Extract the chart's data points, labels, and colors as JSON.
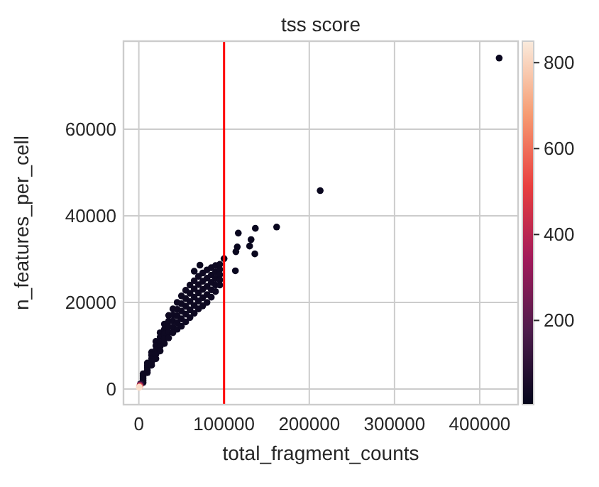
{
  "chart_data": {
    "type": "scatter",
    "title": "tss score",
    "xlabel": "total_fragment_counts",
    "ylabel": "n_features_per_cell",
    "xlim": [
      -18000,
      445000
    ],
    "ylim": [
      -3600,
      80300
    ],
    "xticks": [
      0,
      100000,
      200000,
      300000,
      400000
    ],
    "yticks": [
      0,
      20000,
      40000,
      60000
    ],
    "clim": [
      4,
      850
    ],
    "cticks": [
      200,
      400,
      600,
      800
    ],
    "grid": true,
    "marker": "circle",
    "ref_lines": [
      {
        "axis": "x",
        "value": 100000,
        "color": "#ff0000"
      }
    ],
    "series": [
      {
        "x": [
          5000,
          5000,
          5000,
          5000,
          5000,
          10000,
          10000,
          10000,
          10000,
          10000,
          15000,
          15000,
          15000,
          15000,
          15000,
          20000,
          20000,
          20000,
          20000,
          20000,
          25000,
          25000,
          25000,
          25000,
          25000,
          30000,
          30000,
          30000,
          30000,
          30000,
          35000,
          35000,
          35000,
          35000,
          35000,
          40000,
          40000,
          40000,
          40000,
          40000,
          45000,
          45000,
          45000,
          45000,
          45000,
          50000,
          50000,
          50000,
          50000,
          50000,
          55000,
          55000,
          55000,
          55000,
          55000,
          60000,
          60000,
          60000,
          60000,
          60000,
          65000,
          65000,
          65000,
          65000,
          65000,
          70000,
          70000,
          70000,
          70000,
          70000,
          75000,
          75000,
          75000,
          75000,
          75000,
          80000,
          80000,
          80000,
          80000,
          80000,
          85000,
          85000,
          85000,
          85000,
          85000,
          90000,
          90000,
          90000,
          90000,
          90000,
          95000,
          95000,
          95000,
          95000,
          95000,
          422800,
          212800,
          161700,
          136700,
          116700,
          131700,
          115500,
          113900,
          130000,
          136100,
          113300,
          100000,
          71700,
          65000,
          2000,
          1500,
          1000,
          500
        ],
        "values": [
          3500,
          3000,
          2500,
          2000,
          1500,
          6000,
          5400,
          4900,
          4300,
          3800,
          8500,
          7800,
          7000,
          6200,
          5500,
          11000,
          10000,
          9000,
          8000,
          7000,
          13000,
          12000,
          10900,
          9800,
          8800,
          15000,
          13800,
          12700,
          11600,
          10500,
          17000,
          15700,
          14400,
          13100,
          11800,
          18500,
          17100,
          15700,
          14300,
          13000,
          20000,
          18400,
          16900,
          15300,
          13800,
          21500,
          19700,
          18000,
          16200,
          14500,
          22800,
          20900,
          19100,
          17300,
          15500,
          24000,
          22100,
          20200,
          18300,
          16500,
          25000,
          23100,
          21200,
          19300,
          17500,
          26000,
          24100,
          22200,
          20300,
          18500,
          26800,
          24900,
          23000,
          21100,
          19200,
          27500,
          25600,
          23700,
          21800,
          20000,
          28000,
          26300,
          24600,
          22900,
          21200,
          28500,
          27000,
          25500,
          24000,
          22500,
          28800,
          27600,
          26400,
          25200,
          24000,
          76400,
          45800,
          37400,
          37100,
          36000,
          34500,
          32800,
          31700,
          33000,
          31200,
          27300,
          30100,
          28600,
          27200,
          1200,
          900,
          600,
          400
        ],
        "cvalues": [
          30,
          30,
          30,
          30,
          30,
          30,
          30,
          30,
          30,
          30,
          30,
          30,
          30,
          30,
          30,
          30,
          30,
          30,
          30,
          30,
          30,
          30,
          30,
          30,
          30,
          30,
          30,
          30,
          30,
          30,
          30,
          30,
          30,
          30,
          30,
          30,
          30,
          30,
          30,
          30,
          30,
          30,
          30,
          30,
          30,
          30,
          30,
          30,
          30,
          30,
          30,
          30,
          30,
          30,
          30,
          30,
          30,
          30,
          30,
          30,
          30,
          30,
          30,
          30,
          30,
          30,
          30,
          30,
          30,
          30,
          30,
          30,
          30,
          30,
          30,
          30,
          30,
          30,
          30,
          30,
          30,
          30,
          30,
          30,
          30,
          30,
          30,
          30,
          30,
          30,
          30,
          30,
          30,
          30,
          30,
          20,
          20,
          20,
          20,
          20,
          20,
          20,
          20,
          20,
          20,
          20,
          20,
          20,
          20,
          100,
          300,
          600,
          820
        ]
      }
    ]
  }
}
